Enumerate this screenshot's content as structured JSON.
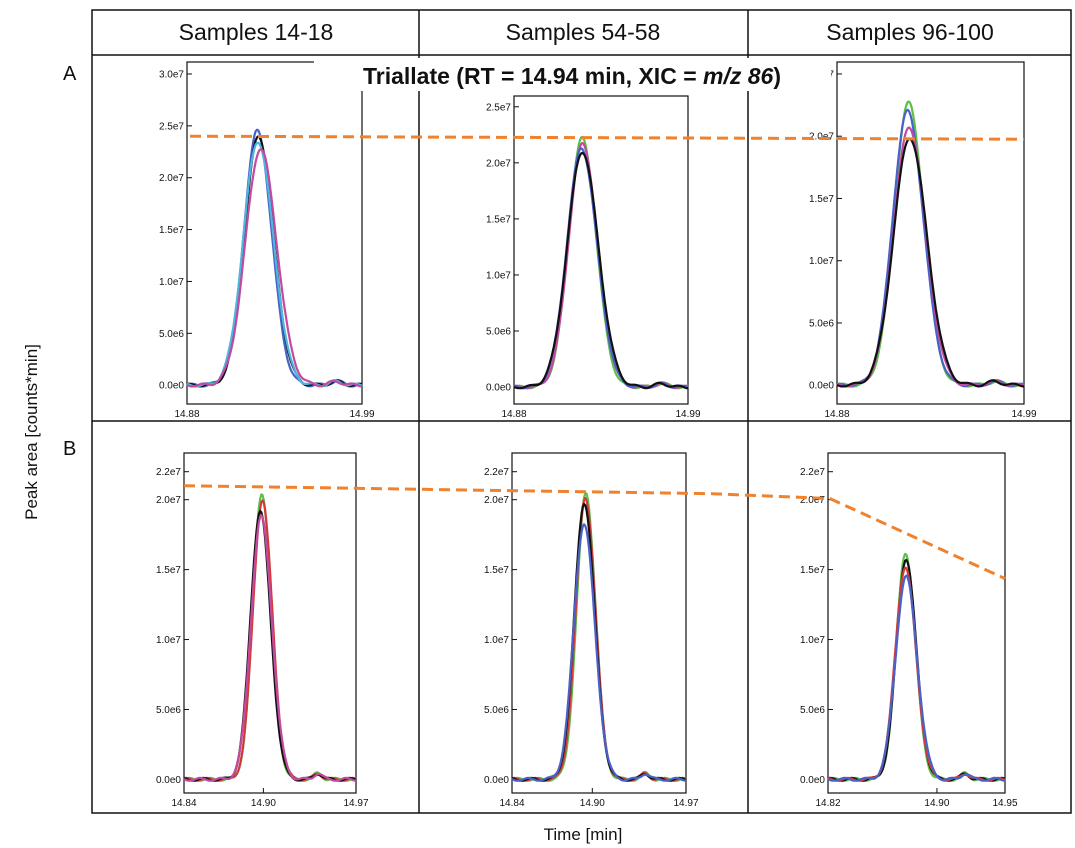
{
  "columns": [
    "Samples 14-18",
    "Samples 54-58",
    "Samples 96-100"
  ],
  "row_labels": [
    "A",
    "B"
  ],
  "title_prefix": "Triallate (RT = 14.94 min, XIC = ",
  "title_italic": "m/z 86",
  "title_suffix": ")",
  "ylabel": "Peak area [counts*min]",
  "xlabel": "Time [min]",
  "colors": {
    "reference_line": "#f0822e",
    "trace_black": "#111111",
    "trace_blue": "#4a62c8",
    "trace_green": "#5cc04a",
    "trace_magenta": "#c24aa0",
    "trace_red": "#d23a3a",
    "trace_cyan": "#4cb8e0"
  },
  "chart_data": [
    {
      "type": "line",
      "row": "A",
      "column": "Samples 14-18",
      "xlim": [
        14.88,
        14.99
      ],
      "ylim": [
        0,
        30000000
      ],
      "x_ticks": [
        14.88,
        14.99
      ],
      "x_tick_labels": [
        "14.88",
        "14.99"
      ],
      "y_ticks": [
        0,
        5000000,
        10000000,
        15000000,
        20000000,
        25000000,
        30000000
      ],
      "y_tick_labels": [
        "0.0e0",
        "5.0e6",
        "1.0e7",
        "1.5e7",
        "2.0e7",
        "2.5e7",
        "3.0e7"
      ],
      "peak_x": 14.925,
      "peak_sigma": 0.0085,
      "series": [
        {
          "color": "blue",
          "peak": 24500000,
          "x_shift": -0.0008
        },
        {
          "color": "black",
          "peak": 24000000,
          "x_shift": 0
        },
        {
          "color": "cyan",
          "peak": 23500000,
          "x_shift": -0.0004
        },
        {
          "color": "magenta",
          "peak": 22800000,
          "x_shift": 0.0012
        }
      ],
      "reference_level": 24000000
    },
    {
      "type": "line",
      "row": "A",
      "column": "Samples 54-58",
      "xlim": [
        14.88,
        14.99
      ],
      "ylim": [
        0,
        25000000
      ],
      "x_ticks": [
        14.88,
        14.99
      ],
      "x_tick_labels": [
        "14.88",
        "14.99"
      ],
      "y_ticks": [
        0,
        5000000,
        10000000,
        15000000,
        20000000,
        25000000
      ],
      "y_tick_labels": [
        "0.0e0",
        "5.0e6",
        "1.0e7",
        "1.5e7",
        "2.0e7",
        "2.5e7"
      ],
      "peak_x": 14.923,
      "peak_sigma": 0.0085,
      "series": [
        {
          "color": "green",
          "peak": 22200000,
          "x_shift": 0
        },
        {
          "color": "magenta",
          "peak": 21700000,
          "x_shift": 0.0004
        },
        {
          "color": "blue",
          "peak": 21300000,
          "x_shift": -0.0003
        },
        {
          "color": "black",
          "peak": 21000000,
          "x_shift": 0.0002
        }
      ],
      "reference_level": 24000000
    },
    {
      "type": "line",
      "row": "A",
      "column": "Samples 96-100",
      "xlim": [
        14.88,
        14.99
      ],
      "ylim": [
        0,
        25000000
      ],
      "x_ticks": [
        14.88,
        14.99
      ],
      "x_tick_labels": [
        "14.88",
        "14.99"
      ],
      "y_ticks": [
        0,
        5000000,
        10000000,
        15000000,
        20000000,
        25000000
      ],
      "y_tick_labels": [
        "0.0e0",
        "5.0e6",
        "1.0e7",
        "1.5e7",
        "2.0e7",
        "2.5e7"
      ],
      "peak_x": 14.922,
      "peak_sigma": 0.0085,
      "series": [
        {
          "color": "green",
          "peak": 22700000,
          "x_shift": 0
        },
        {
          "color": "blue",
          "peak": 22000000,
          "x_shift": -0.0005
        },
        {
          "color": "magenta",
          "peak": 20700000,
          "x_shift": 0.0005
        },
        {
          "color": "black",
          "peak": 19900000,
          "x_shift": 0.0008
        }
      ],
      "reference_level": 24000000
    },
    {
      "type": "line",
      "row": "B",
      "column": "Samples 14-18",
      "xlim": [
        14.84,
        14.97
      ],
      "ylim": [
        0,
        22000000
      ],
      "x_ticks": [
        14.84,
        14.9,
        14.97
      ],
      "x_tick_labels": [
        "14.84",
        "14.90",
        "14.97"
      ],
      "y_ticks": [
        0,
        5000000,
        10000000,
        15000000,
        20000000,
        22000000
      ],
      "y_tick_labels": [
        "0.0e0",
        "5.0e6",
        "1.0e7",
        "1.5e7",
        "2.0e7",
        "2.2e7"
      ],
      "peak_x": 14.898,
      "peak_sigma": 0.0068,
      "series": [
        {
          "color": "green",
          "peak": 20500000,
          "x_shift": 0.0008
        },
        {
          "color": "red",
          "peak": 20000000,
          "x_shift": 0.0012
        },
        {
          "color": "black",
          "peak": 19200000,
          "x_shift": -0.0004
        },
        {
          "color": "magenta",
          "peak": 18800000,
          "x_shift": 0.0003
        }
      ],
      "reference_level": 21000000
    },
    {
      "type": "line",
      "row": "B",
      "column": "Samples 54-58",
      "xlim": [
        14.84,
        14.97
      ],
      "ylim": [
        0,
        22000000
      ],
      "x_ticks": [
        14.84,
        14.9,
        14.97
      ],
      "x_tick_labels": [
        "14.84",
        "14.90",
        "14.97"
      ],
      "y_ticks": [
        0,
        5000000,
        10000000,
        15000000,
        20000000,
        22000000
      ],
      "y_tick_labels": [
        "0.0e0",
        "5.0e6",
        "1.0e7",
        "1.5e7",
        "2.0e7",
        "2.2e7"
      ],
      "peak_x": 14.894,
      "peak_sigma": 0.0068,
      "series": [
        {
          "color": "green",
          "peak": 20500000,
          "x_shift": 0.0012
        },
        {
          "color": "red",
          "peak": 20200000,
          "x_shift": 0.0008
        },
        {
          "color": "black",
          "peak": 19800000,
          "x_shift": 0
        },
        {
          "color": "blue",
          "peak": 18300000,
          "x_shift": -0.0002
        }
      ],
      "reference_level": 21000000
    },
    {
      "type": "line",
      "row": "B",
      "column": "Samples 96-100",
      "xlim": [
        14.82,
        14.95
      ],
      "ylim": [
        0,
        22000000
      ],
      "x_ticks": [
        14.82,
        14.9,
        14.95
      ],
      "x_tick_labels": [
        "14.82",
        "14.90",
        "14.95"
      ],
      "y_ticks": [
        0,
        5000000,
        10000000,
        15000000,
        20000000,
        22000000
      ],
      "y_tick_labels": [
        "0.0e0",
        "5.0e6",
        "1.0e7",
        "1.5e7",
        "2.0e7",
        "2.2e7"
      ],
      "peak_x": 14.877,
      "peak_sigma": 0.0068,
      "series": [
        {
          "color": "green",
          "peak": 16200000,
          "x_shift": 0
        },
        {
          "color": "black",
          "peak": 15800000,
          "x_shift": 0.0003
        },
        {
          "color": "red",
          "peak": 15200000,
          "x_shift": -0.0002
        },
        {
          "color": "blue",
          "peak": 14500000,
          "x_shift": 0.0003
        }
      ],
      "reference_level": 16500000
    }
  ]
}
